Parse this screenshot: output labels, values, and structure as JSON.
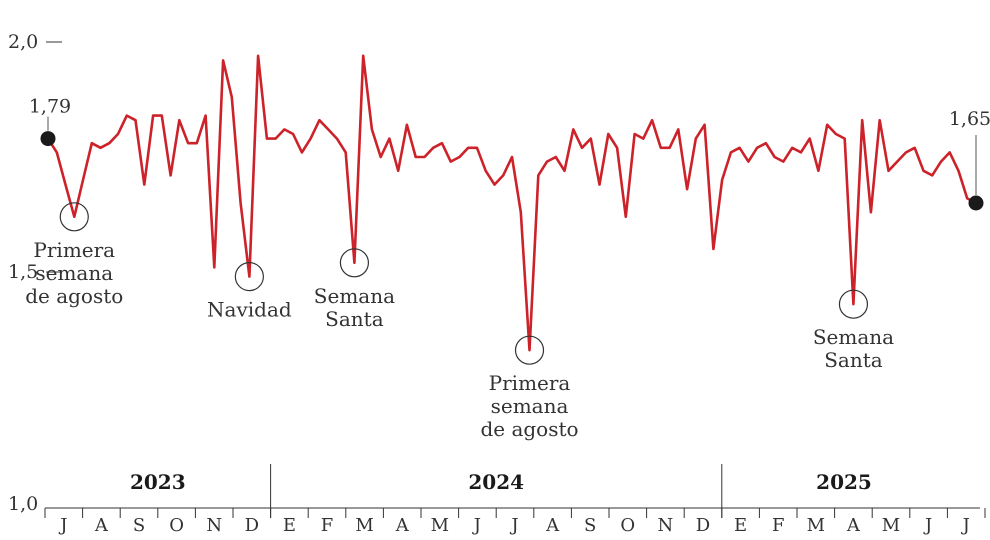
{
  "chart_data": {
    "type": "line",
    "title": "",
    "xlabel": "",
    "ylabel": "",
    "ylim": [
      1.0,
      2.0
    ],
    "y_ticks": [
      {
        "value": 2.0,
        "label": "2,0"
      },
      {
        "value": 1.5,
        "label": "1,5"
      },
      {
        "value": 1.0,
        "label": "1,0"
      }
    ],
    "series": [
      {
        "color": "#cc2229",
        "x_start_week": 0,
        "values": [
          1.79,
          1.76,
          1.69,
          1.62,
          1.7,
          1.78,
          1.77,
          1.78,
          1.8,
          1.84,
          1.83,
          1.69,
          1.84,
          1.84,
          1.71,
          1.83,
          1.78,
          1.78,
          1.84,
          1.51,
          1.96,
          1.88,
          1.65,
          1.49,
          1.97,
          1.79,
          1.79,
          1.81,
          1.8,
          1.76,
          1.79,
          1.83,
          1.81,
          1.79,
          1.76,
          1.52,
          1.97,
          1.81,
          1.75,
          1.79,
          1.72,
          1.82,
          1.75,
          1.75,
          1.77,
          1.78,
          1.74,
          1.75,
          1.77,
          1.77,
          1.72,
          1.69,
          1.71,
          1.75,
          1.63,
          1.33,
          1.71,
          1.74,
          1.75,
          1.72,
          1.81,
          1.77,
          1.79,
          1.69,
          1.8,
          1.77,
          1.62,
          1.8,
          1.79,
          1.83,
          1.77,
          1.77,
          1.81,
          1.68,
          1.79,
          1.82,
          1.55,
          1.7,
          1.76,
          1.77,
          1.74,
          1.77,
          1.78,
          1.75,
          1.74,
          1.77,
          1.76,
          1.79,
          1.72,
          1.82,
          1.8,
          1.79,
          1.43,
          1.83,
          1.63,
          1.83,
          1.72,
          1.74,
          1.76,
          1.77,
          1.72,
          1.71,
          1.74,
          1.76,
          1.72,
          1.66,
          1.65
        ]
      }
    ],
    "annotations": [
      {
        "week": 3,
        "value": 1.62,
        "lines": [
          "Primera",
          "semana",
          "de agosto"
        ]
      },
      {
        "week": 23,
        "value": 1.49,
        "lines": [
          "Navidad"
        ]
      },
      {
        "week": 35,
        "value": 1.52,
        "lines": [
          "Semana",
          "Santa"
        ]
      },
      {
        "week": 55,
        "value": 1.33,
        "lines": [
          "Primera",
          "semana",
          "de agosto"
        ]
      },
      {
        "week": 92,
        "value": 1.43,
        "lines": [
          "Semana",
          "Santa"
        ]
      }
    ],
    "endpoints": [
      {
        "week": 0,
        "value": 1.79,
        "label": "1,79"
      },
      {
        "week": 106,
        "value": 1.65,
        "label": "1,65"
      }
    ],
    "years": [
      {
        "label": "2023",
        "start_month": 0,
        "end_month": 6
      },
      {
        "label": "2024",
        "start_month": 6,
        "end_month": 18
      },
      {
        "label": "2025",
        "start_month": 18,
        "end_month": 24.5
      }
    ],
    "months": [
      "J",
      "A",
      "S",
      "O",
      "N",
      "D",
      "E",
      "F",
      "M",
      "A",
      "M",
      "J",
      "J",
      "A",
      "S",
      "O",
      "N",
      "D",
      "E",
      "F",
      "M",
      "A",
      "M",
      "J",
      "J"
    ],
    "grid": false,
    "legend": "none"
  }
}
